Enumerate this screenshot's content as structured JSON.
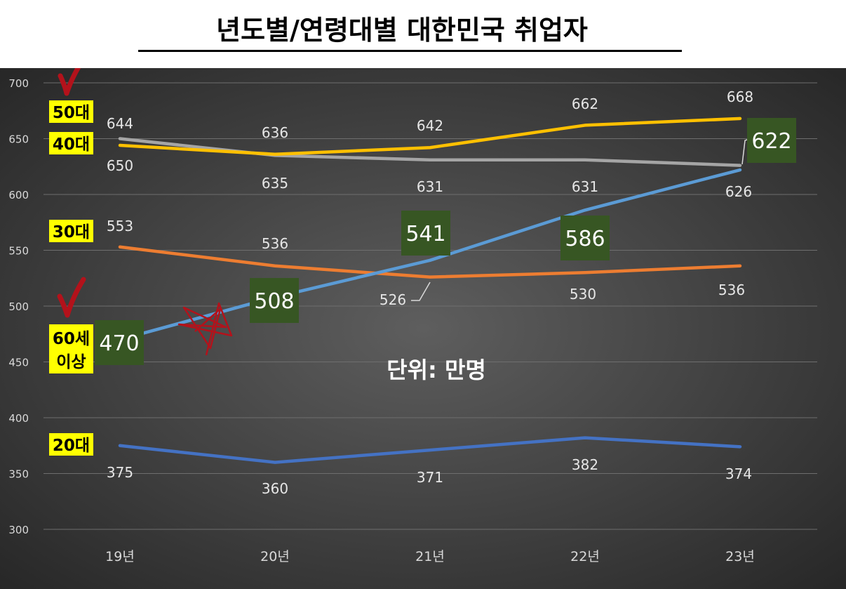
{
  "chart_data": {
    "type": "line",
    "title": "년도별/연령대별 대한민국 취업자",
    "unit_note": "단위: 만명",
    "categories": [
      "19년",
      "20년",
      "21년",
      "22년",
      "23년"
    ],
    "ylim": [
      300,
      700
    ],
    "yticks": [
      300,
      350,
      400,
      450,
      500,
      550,
      600,
      650,
      700
    ],
    "grid": true,
    "series": [
      {
        "name": "50대",
        "values": [
          650,
          635,
          631,
          631,
          626
        ],
        "color": "#a5a5a5"
      },
      {
        "name": "40대",
        "values": [
          644,
          636,
          642,
          662,
          668
        ],
        "color": "#ffc000"
      },
      {
        "name": "30대",
        "values": [
          553,
          536,
          526,
          530,
          536
        ],
        "color": "#ed7d31"
      },
      {
        "name": "60세 이상",
        "values": [
          470,
          508,
          541,
          586,
          622
        ],
        "color": "#5b9bd5",
        "label_style": "boxed"
      },
      {
        "name": "20대",
        "values": [
          375,
          360,
          371,
          382,
          374
        ],
        "color": "#4472c4"
      }
    ]
  },
  "colors": {
    "chart_bg_center": "#5e5e5e",
    "chart_bg_edge": "#262626",
    "label_box": "#375623",
    "legend_tag_bg": "#ffff00",
    "annotation_red": "#b3121b"
  },
  "decorations": [
    "checkmark-icon",
    "checkmark-icon",
    "star-doodle-icon"
  ]
}
